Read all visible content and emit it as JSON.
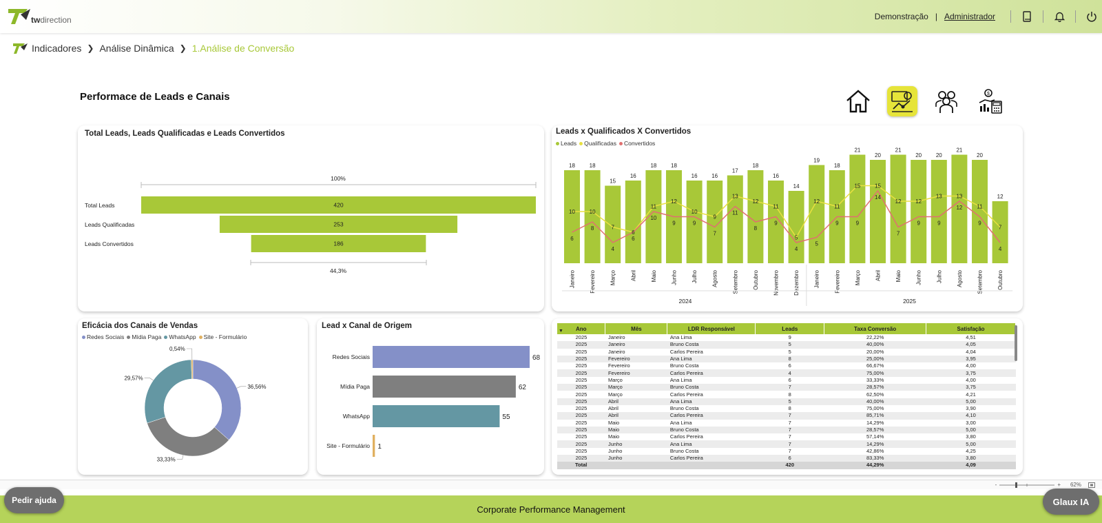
{
  "header": {
    "logo_text_bold": "tw",
    "logo_text": "direction",
    "demo_label": "Demonstração",
    "separator": "|",
    "admin_label": "Administrador"
  },
  "breadcrumb": {
    "item1": "Indicadores",
    "item2": "Análise Dinâmica",
    "item3": "1.Análise de Conversão"
  },
  "page": {
    "title": "Performace de Leads e Canais"
  },
  "colors": {
    "accent": "#a8c838",
    "yellow": "#e8e040",
    "red": "#e07070",
    "purple": "#8490c8",
    "gray": "#7f7f7f",
    "teal": "#6497a3",
    "gold": "#e0b060"
  },
  "funnel": {
    "title": "Total Leads, Leads Qualificadas e Leads Convertidos",
    "top_pct": "100%",
    "bottom_pct": "44,3%",
    "labels": [
      "Total Leads",
      "Leads Qualificadas",
      "Leads Convertidos"
    ],
    "value_labels": [
      "420",
      "253",
      "186"
    ]
  },
  "combo": {
    "title": "Leads x Qualificados X Convertidos",
    "legend": [
      "Leads",
      "Qualificadas",
      "Convertidos"
    ],
    "years": [
      "2024",
      "2025"
    ]
  },
  "donut": {
    "title": "Eficácia dos Canais de Vendas",
    "legend": [
      "Redes Sociais",
      "Mídia Paga",
      "WhatsApp",
      "Site - Formulário"
    ],
    "labels": [
      "36,56%",
      "33,33%",
      "29,57%",
      "0,54%"
    ]
  },
  "hbar": {
    "title": "Lead x Canal de Origem"
  },
  "table": {
    "headers": [
      "Ano",
      "Mês",
      "LDR Responsável",
      "Leads",
      "Taxa Conversão",
      "Satisfação"
    ],
    "rows": [
      [
        "2025",
        "Janeiro",
        "Ana Lima",
        "9",
        "22,22%",
        "4,51"
      ],
      [
        "2025",
        "Janeiro",
        "Bruno Costa",
        "5",
        "40,00%",
        "4,05"
      ],
      [
        "2025",
        "Janeiro",
        "Carlos Pereira",
        "5",
        "20,00%",
        "4,04"
      ],
      [
        "2025",
        "Fevereiro",
        "Ana Lima",
        "8",
        "25,00%",
        "3,95"
      ],
      [
        "2025",
        "Fevereiro",
        "Bruno Costa",
        "6",
        "66,67%",
        "4,00"
      ],
      [
        "2025",
        "Fevereiro",
        "Carlos Pereira",
        "4",
        "75,00%",
        "3,75"
      ],
      [
        "2025",
        "Março",
        "Ana Lima",
        "6",
        "33,33%",
        "4,00"
      ],
      [
        "2025",
        "Março",
        "Bruno Costa",
        "7",
        "28,57%",
        "3,75"
      ],
      [
        "2025",
        "Março",
        "Carlos Pereira",
        "8",
        "62,50%",
        "4,21"
      ],
      [
        "2025",
        "Abril",
        "Ana Lima",
        "5",
        "40,00%",
        "5,00"
      ],
      [
        "2025",
        "Abril",
        "Bruno Costa",
        "8",
        "75,00%",
        "3,90"
      ],
      [
        "2025",
        "Abril",
        "Carlos Pereira",
        "7",
        "85,71%",
        "4,10"
      ],
      [
        "2025",
        "Maio",
        "Ana Lima",
        "7",
        "14,29%",
        "3,00"
      ],
      [
        "2025",
        "Maio",
        "Bruno Costa",
        "7",
        "28,57%",
        "5,00"
      ],
      [
        "2025",
        "Maio",
        "Carlos Pereira",
        "7",
        "57,14%",
        "3,80"
      ],
      [
        "2025",
        "Junho",
        "Ana Lima",
        "7",
        "14,29%",
        "5,00"
      ],
      [
        "2025",
        "Junho",
        "Bruno Costa",
        "7",
        "42,86%",
        "4,25"
      ],
      [
        "2025",
        "Junho",
        "Carlos Pereira",
        "6",
        "83,33%",
        "3,80"
      ]
    ],
    "total": [
      "Total",
      "",
      "",
      "420",
      "44,29%",
      "4,09"
    ]
  },
  "zoom": {
    "minus": "-",
    "plus": "+",
    "level": "62%"
  },
  "footer": {
    "text": "Corporate Performance Management"
  },
  "buttons": {
    "help": "Pedir ajuda",
    "glaux": "Glaux IA"
  },
  "chart_data": [
    {
      "type": "bar",
      "title": "Total Leads, Leads Qualificadas e Leads Convertidos",
      "categories": [
        "Total Leads",
        "Leads Qualificadas",
        "Leads Convertidos"
      ],
      "values": [
        420,
        253,
        186
      ]
    },
    {
      "type": "bar",
      "title": "Leads x Qualificados X Convertidos",
      "categories": [
        "Janeiro",
        "Fevereiro",
        "Março",
        "Abril",
        "Maio",
        "Junho",
        "Julho",
        "Agosto",
        "Setembro",
        "Outubro",
        "Novembro",
        "Dezembro",
        "Janeiro",
        "Fevereiro",
        "Março",
        "Abril",
        "Maio",
        "Junho",
        "Julho",
        "Agosto",
        "Setembro",
        "Outubro"
      ],
      "groups": [
        "2024",
        "2024",
        "2024",
        "2024",
        "2024",
        "2024",
        "2024",
        "2024",
        "2024",
        "2024",
        "2024",
        "2024",
        "2025",
        "2025",
        "2025",
        "2025",
        "2025",
        "2025",
        "2025",
        "2025",
        "2025",
        "2025"
      ],
      "series": [
        {
          "name": "Leads",
          "type": "bar",
          "values": [
            18,
            18,
            15,
            16,
            18,
            18,
            16,
            16,
            17,
            18,
            16,
            14,
            19,
            18,
            21,
            20,
            21,
            20,
            20,
            21,
            20,
            12
          ]
        },
        {
          "name": "Qualificadas",
          "type": "line",
          "values": [
            10,
            10,
            7,
            6,
            11,
            12,
            10,
            9,
            13,
            12,
            11,
            5,
            12,
            11,
            15,
            15,
            12,
            12,
            13,
            13,
            11,
            7
          ]
        },
        {
          "name": "Convertidos",
          "type": "line",
          "values": [
            6,
            8,
            4,
            6,
            10,
            9,
            9,
            7,
            11,
            8,
            9,
            4,
            5,
            9,
            9,
            14,
            7,
            9,
            9,
            12,
            9,
            4
          ]
        }
      ],
      "legend": "top-left"
    },
    {
      "type": "pie",
      "title": "Eficácia dos Canais de Vendas",
      "categories": [
        "Redes Sociais",
        "Mídia Paga",
        "WhatsApp",
        "Site - Formulário"
      ],
      "values": [
        36.56,
        33.33,
        29.57,
        0.54
      ]
    },
    {
      "type": "bar",
      "title": "Lead x Canal de Origem",
      "categories": [
        "Redes Sociais",
        "Mídia Paga",
        "WhatsApp",
        "Site - Formulário"
      ],
      "values": [
        68,
        62,
        55,
        1
      ]
    }
  ]
}
